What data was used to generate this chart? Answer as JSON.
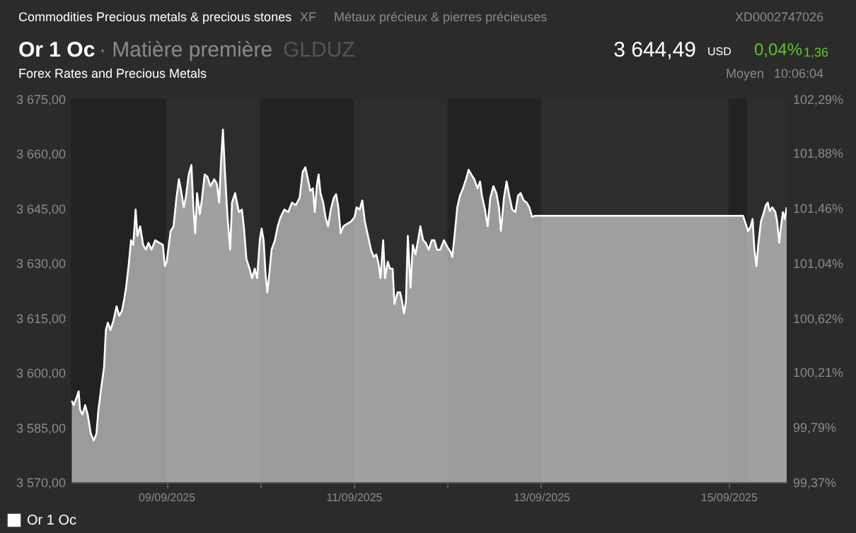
{
  "chart_data": {
    "type": "area",
    "title": "Or 1 Oc",
    "subtitle": "Forex Rates and Precious Metals",
    "annotations": [
      "Commodities Precious metals & precious stones",
      "XF",
      "Métaux précieux & pierres précieuses",
      "XD0002747026",
      "· Matière première",
      "GLDUZ",
      "3 644,49",
      "USD",
      "0,04%",
      "1,36",
      "Moyen",
      "10:06:04"
    ],
    "xlim": [
      "2025-09-07T23:31",
      "2025-09-15T14:53"
    ],
    "xticks": [
      {
        "value": "2025-09-09",
        "label": "09/09/2025"
      },
      {
        "value": "2025-09-10",
        "label": null
      },
      {
        "value": "2025-09-11",
        "label": "11/09/2025"
      },
      {
        "value": "2025-09-12",
        "label": null
      },
      {
        "value": "2025-09-13",
        "label": "13/09/2025"
      },
      {
        "value": "2025-09-15",
        "label": "15/09/2025"
      }
    ],
    "ylim": [
      3570,
      3675
    ],
    "yticks": [
      {
        "value": 3570,
        "label": "3 570,00"
      },
      {
        "value": 3585,
        "label": "3 585,00"
      },
      {
        "value": 3600,
        "label": "3 600,00"
      },
      {
        "value": 3615,
        "label": "3 615,00"
      },
      {
        "value": 3630,
        "label": "3 630,00"
      },
      {
        "value": 3645,
        "label": "3 645,00"
      },
      {
        "value": 3660,
        "label": "3 660,00"
      },
      {
        "value": 3675,
        "label": "3 675,00"
      }
    ],
    "y2lim": [
      99.37,
      102.29
    ],
    "y2ticks": [
      {
        "value": 99.37,
        "label": "99,37%"
      },
      {
        "value": 99.79,
        "label": "99,79%"
      },
      {
        "value": 100.21,
        "label": "100,21%"
      },
      {
        "value": 100.62,
        "label": "100,62%"
      },
      {
        "value": 101.04,
        "label": "101,04%"
      },
      {
        "value": 101.46,
        "label": "101,46%"
      },
      {
        "value": 101.88,
        "label": "101,88%"
      },
      {
        "value": 102.29,
        "label": "102,29%"
      }
    ],
    "bands": [
      {
        "axis": "x",
        "from": "2025-09-07T23:31",
        "to": "2025-09-09",
        "color": "#222222"
      },
      {
        "axis": "x",
        "from": "2025-09-10",
        "to": "2025-09-11",
        "color": "#222222"
      },
      {
        "axis": "x",
        "from": "2025-09-12",
        "to": "2025-09-13",
        "color": "#222222"
      },
      {
        "axis": "x",
        "from": "2025-09-15",
        "to": "2025-09-15T04:48",
        "color": "#222222"
      }
    ],
    "grid": false,
    "legend": "bottom left",
    "series": [
      {
        "name": "Or 1 Oc",
        "color": "#ffffff",
        "x": [
          "2025-09-07T23:46",
          "2025-09-08T00:16",
          "2025-09-08T00:58",
          "2025-09-08T01:32",
          "2025-09-08T01:55",
          "2025-09-08T02:30",
          "2025-09-08T03:12",
          "2025-09-08T03:52",
          "2025-09-08T04:39",
          "2025-09-08T05:25",
          "2025-09-08T06:06",
          "2025-09-08T06:36",
          "2025-09-08T07:22",
          "2025-09-08T08:02",
          "2025-09-08T08:31",
          "2025-09-08T09:01",
          "2025-09-08T09:42",
          "2025-09-08T10:28",
          "2025-09-08T11:15",
          "2025-09-08T11:56",
          "2025-09-08T12:37",
          "2025-09-08T13:12",
          "2025-09-08T13:41",
          "2025-09-08T14:23",
          "2025-09-08T14:57",
          "2025-09-08T15:32",
          "2025-09-08T16:08",
          "2025-09-08T16:36",
          "2025-09-08T17:18",
          "2025-09-08T18:04",
          "2025-09-08T18:45",
          "2025-09-08T19:25",
          "2025-09-08T20:12",
          "2025-09-08T21:10",
          "2025-09-08T22:09",
          "2025-09-08T23:07",
          "2025-09-08T23:37",
          "2025-09-09T00:06",
          "2025-09-09T01:05",
          "2025-09-09T01:51",
          "2025-09-09T02:31",
          "2025-09-09T03:13",
          "2025-09-09T03:48",
          "2025-09-09T04:28",
          "2025-09-09T04:58",
          "2025-09-09T05:44",
          "2025-09-09T06:26",
          "2025-09-09T06:55",
          "2025-09-09T07:24",
          "2025-09-09T07:52",
          "2025-09-09T08:34",
          "2025-09-09T09:09",
          "2025-09-09T09:49",
          "2025-09-09T10:31",
          "2025-09-09T11:17",
          "2025-09-09T12:16",
          "2025-09-09T12:56",
          "2025-09-09T13:32",
          "2025-09-09T14:01",
          "2025-09-09T14:30",
          "2025-09-09T14:59",
          "2025-09-09T15:40",
          "2025-09-09T16:21",
          "2025-09-09T16:49",
          "2025-09-09T17:37",
          "2025-09-09T18:35",
          "2025-09-09T19:21",
          "2025-09-09T19:51",
          "2025-09-09T20:31",
          "2025-09-09T21:19",
          "2025-09-09T21:59",
          "2025-09-09T22:39",
          "2025-09-09T23:15",
          "2025-09-09T23:56",
          "2025-09-10T00:24",
          "2025-09-10T00:55",
          "2025-09-10T01:24",
          "2025-09-10T01:52",
          "2025-09-10T02:23",
          "2025-09-10T02:57",
          "2025-09-10T03:49",
          "2025-09-10T04:31",
          "2025-09-10T05:17",
          "2025-09-10T06:14",
          "2025-09-10T07:13",
          "2025-09-10T08:11",
          "2025-09-10T09:10",
          "2025-09-10T10:08",
          "2025-09-10T10:55",
          "2025-09-10T11:36",
          "2025-09-10T12:16",
          "2025-09-10T12:52",
          "2025-09-10T13:32",
          "2025-09-10T14:01",
          "2025-09-10T14:31",
          "2025-09-10T15:00",
          "2025-09-10T15:29",
          "2025-09-10T16:11",
          "2025-09-10T16:45",
          "2025-09-10T17:25",
          "2025-09-10T18:07",
          "2025-09-10T18:53",
          "2025-09-10T19:29",
          "2025-09-10T20:04",
          "2025-09-10T20:38",
          "2025-09-10T21:20",
          "2025-09-10T22:18",
          "2025-09-10T23:17",
          "2025-09-11T00:14",
          "2025-09-11T00:43",
          "2025-09-11T01:31",
          "2025-09-11T02:11",
          "2025-09-11T02:51",
          "2025-09-11T03:39",
          "2025-09-11T04:25",
          "2025-09-11T05:07",
          "2025-09-11T05:47",
          "2025-09-11T06:22",
          "2025-09-11T06:52",
          "2025-09-11T07:32",
          "2025-09-11T08:01",
          "2025-09-11T08:43",
          "2025-09-11T09:17",
          "2025-09-11T09:58",
          "2025-09-11T10:26",
          "2025-09-11T11:14",
          "2025-09-11T11:54",
          "2025-09-11T12:24",
          "2025-09-11T12:53",
          "2025-09-11T13:22",
          "2025-09-11T13:51",
          "2025-09-11T14:33",
          "2025-09-11T15:07",
          "2025-09-11T15:49",
          "2025-09-11T16:29",
          "2025-09-11T17:04",
          "2025-09-11T17:46",
          "2025-09-11T18:26",
          "2025-09-11T19:12",
          "2025-09-11T20:00",
          "2025-09-11T20:40",
          "2025-09-11T21:20",
          "2025-09-11T22:08",
          "2025-09-11T23:07",
          "2025-09-12T00:04",
          "2025-09-12T00:52",
          "2025-09-12T01:15",
          "2025-09-12T01:49",
          "2025-09-12T02:31",
          "2025-09-12T03:12",
          "2025-09-12T03:59",
          "2025-09-12T04:45",
          "2025-09-12T05:25",
          "2025-09-12T06:07",
          "2025-09-12T06:53",
          "2025-09-12T07:41",
          "2025-09-12T08:21",
          "2025-09-12T08:50",
          "2025-09-12T09:37",
          "2025-09-12T10:18",
          "2025-09-12T10:58",
          "2025-09-12T11:46",
          "2025-09-12T12:32",
          "2025-09-12T13:12",
          "2025-09-12T13:42",
          "2025-09-12T14:28",
          "2025-09-12T15:09",
          "2025-09-12T15:50",
          "2025-09-12T16:36",
          "2025-09-12T17:24",
          "2025-09-12T18:04",
          "2025-09-12T18:45",
          "2025-09-12T19:32",
          "2025-09-12T20:18",
          "2025-09-12T20:59",
          "2025-09-12T21:40",
          "2025-09-12T22:26",
          "2025-09-15T03:43",
          "2025-09-15T04:12",
          "2025-09-15T05:00",
          "2025-09-15T05:40",
          "2025-09-15T06:09",
          "2025-09-15T06:37",
          "2025-09-15T07:08",
          "2025-09-15T07:36",
          "2025-09-15T08:17",
          "2025-09-15T08:53",
          "2025-09-15T09:33",
          "2025-09-15T10:02",
          "2025-09-15T10:32",
          "2025-09-15T11:12",
          "2025-09-15T11:59",
          "2025-09-15T12:27",
          "2025-09-15T12:58",
          "2025-09-15T13:26",
          "2025-09-15T13:55",
          "2025-09-15T14:24",
          "2025-09-15T14:53"
        ],
        "values": [
          3592.3,
          3591.1,
          3593.0,
          3594.9,
          3589.8,
          3588.5,
          3591.1,
          3588.5,
          3583.3,
          3581.4,
          3583.3,
          3589.8,
          3596.2,
          3601.4,
          3611.7,
          3613.7,
          3611.7,
          3614.3,
          3618.2,
          3615.6,
          3616.9,
          3620.1,
          3623.3,
          3629.8,
          3636.3,
          3635.0,
          3644.7,
          3637.5,
          3640.1,
          3635.0,
          3633.7,
          3635.6,
          3633.7,
          3636.3,
          3635.6,
          3635.0,
          3629.2,
          3630.4,
          3638.8,
          3640.1,
          3647.2,
          3653.0,
          3649.8,
          3645.3,
          3647.9,
          3654.3,
          3656.9,
          3645.3,
          3638.2,
          3649.2,
          3643.4,
          3647.9,
          3654.3,
          3653.7,
          3651.1,
          3653.0,
          3651.8,
          3646.6,
          3658.2,
          3666.6,
          3655.6,
          3642.7,
          3633.7,
          3646.6,
          3649.2,
          3644.0,
          3644.7,
          3640.1,
          3631.1,
          3628.5,
          3625.9,
          3628.5,
          3625.9,
          3636.3,
          3639.5,
          3636.3,
          3627.2,
          3622.0,
          3627.2,
          3633.7,
          3636.3,
          3640.1,
          3642.7,
          3644.7,
          3644.0,
          3646.6,
          3645.9,
          3647.9,
          3655.0,
          3656.3,
          3653.0,
          3649.8,
          3650.5,
          3644.0,
          3651.1,
          3654.3,
          3649.2,
          3646.6,
          3642.7,
          3640.1,
          3644.7,
          3647.9,
          3648.9,
          3645.3,
          3638.2,
          3640.1,
          3640.8,
          3641.4,
          3642.7,
          3645.3,
          3644.7,
          3647.2,
          3641.4,
          3637.5,
          3633.7,
          3631.7,
          3632.4,
          3629.8,
          3625.9,
          3636.3,
          3625.9,
          3630.4,
          3628.5,
          3628.5,
          3618.8,
          3622.0,
          3622.0,
          3619.5,
          3616.2,
          3619.5,
          3637.5,
          3623.3,
          3635.0,
          3632.4,
          3636.3,
          3640.1,
          3636.3,
          3635.6,
          3633.7,
          3636.3,
          3636.3,
          3633.7,
          3633.7,
          3636.3,
          3634.3,
          3633.0,
          3631.7,
          3637.5,
          3645.3,
          3648.5,
          3650.5,
          3653.0,
          3655.6,
          3654.3,
          3653.0,
          3650.5,
          3652.4,
          3648.5,
          3644.7,
          3640.1,
          3647.9,
          3651.1,
          3649.2,
          3645.3,
          3638.8,
          3647.9,
          3652.4,
          3648.5,
          3644.7,
          3644.0,
          3648.5,
          3649.2,
          3647.2,
          3646.6,
          3645.3,
          3642.7,
          3643.0,
          3643.0,
          3641.4,
          3638.8,
          3640.1,
          3642.1,
          3633.7,
          3629.2,
          3635.0,
          3641.4,
          3643.4,
          3645.9,
          3646.6,
          3644.3,
          3645.3,
          3644.0,
          3641.4,
          3635.6,
          3640.1,
          3644.0,
          3642.1,
          3645.3
        ]
      }
    ]
  }
}
